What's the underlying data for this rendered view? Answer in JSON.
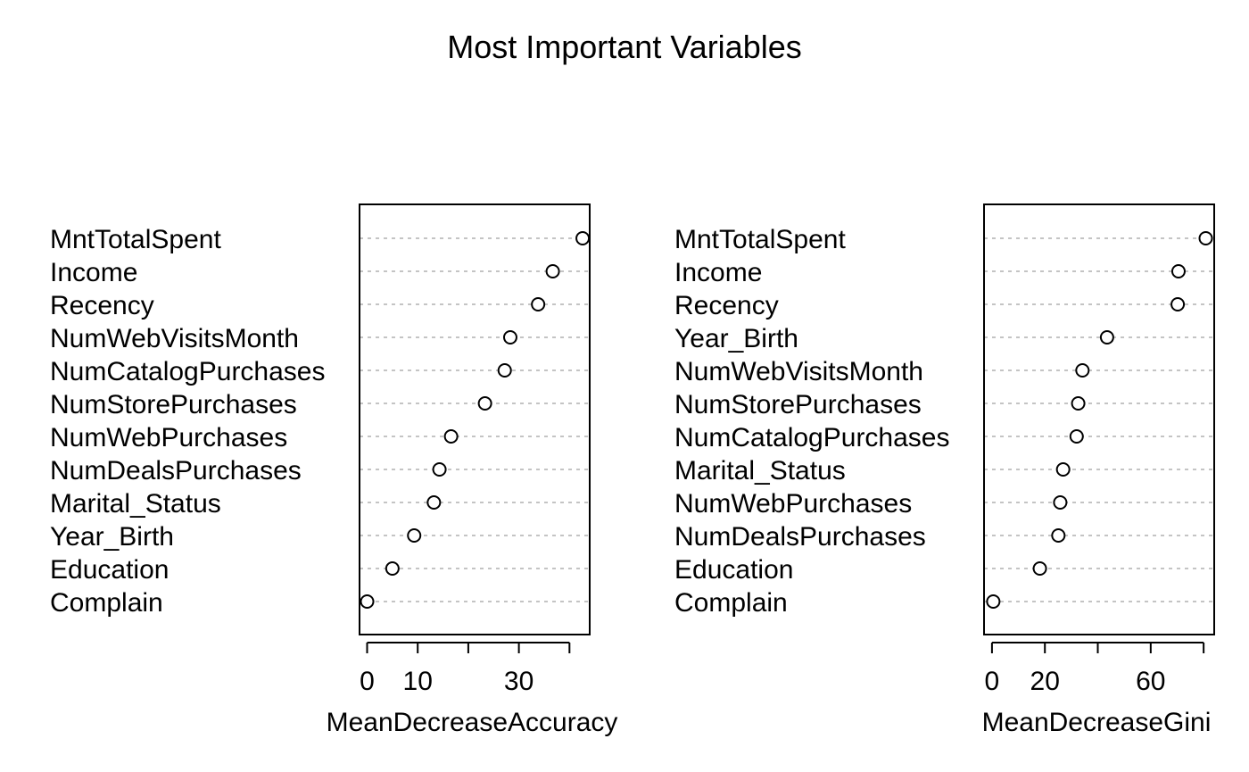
{
  "title": "Most Important Variables",
  "chart_data": [
    {
      "type": "scatter",
      "xlabel": "MeanDecreaseAccuracy",
      "xlim": [
        -1.5,
        44.0
      ],
      "ticks": [
        0,
        10,
        20,
        30,
        40
      ],
      "tick_labels": [
        "0",
        "10",
        "",
        "30",
        ""
      ],
      "grid": "dotted horizontal guides",
      "categories": [
        "MntTotalSpent",
        "Income",
        "Recency",
        "NumWebVisitsMonth",
        "NumCatalogPurchases",
        "NumStorePurchases",
        "NumWebPurchases",
        "NumDealsPurchases",
        "Marital_Status",
        "Year_Birth",
        "Education",
        "Complain"
      ],
      "values": [
        42.6,
        36.7,
        33.8,
        28.3,
        27.2,
        23.3,
        16.6,
        14.3,
        13.2,
        9.3,
        5.0,
        0.0
      ]
    },
    {
      "type": "scatter",
      "xlabel": "MeanDecreaseGini",
      "xlim": [
        -3.0,
        84.0
      ],
      "ticks": [
        0,
        20,
        40,
        60,
        80
      ],
      "tick_labels": [
        "0",
        "20",
        "",
        "60",
        ""
      ],
      "grid": "dotted horizontal guides",
      "categories": [
        "MntTotalSpent",
        "Income",
        "Recency",
        "Year_Birth",
        "NumWebVisitsMonth",
        "NumStorePurchases",
        "NumCatalogPurchases",
        "Marital_Status",
        "NumWebPurchases",
        "NumDealsPurchases",
        "Education",
        "Complain"
      ],
      "values": [
        80.8,
        70.5,
        70.2,
        43.5,
        34.2,
        32.6,
        32.0,
        26.9,
        25.8,
        25.1,
        18.1,
        0.5
      ]
    }
  ]
}
